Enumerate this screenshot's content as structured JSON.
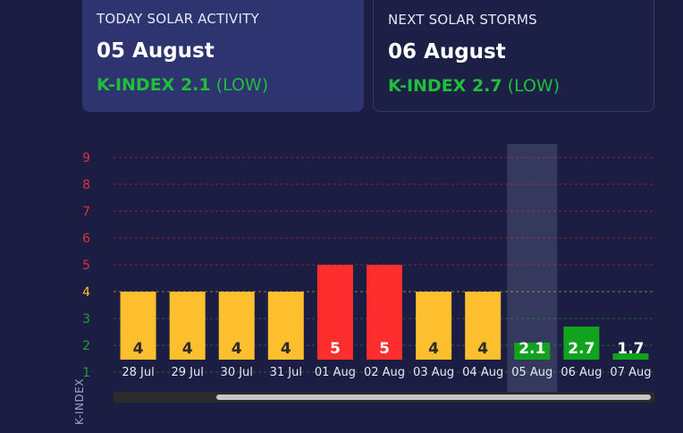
{
  "today": {
    "title": "TODAY SOLAR ACTIVITY",
    "date": "05 August",
    "kindex_label": "K-INDEX 2.1",
    "level": "(LOW)"
  },
  "next": {
    "title": "NEXT SOLAR STORMS",
    "date": "06 August",
    "kindex_label": "K-INDEX 2.7",
    "level": "(LOW)"
  },
  "chart_data": {
    "type": "bar",
    "categories": [
      "28 Jul",
      "29 Jul",
      "30 Jul",
      "31 Jul",
      "01 Aug",
      "02 Aug",
      "03 Aug",
      "04 Aug",
      "05 Aug",
      "06 Aug",
      "07 Aug"
    ],
    "values": [
      4,
      4,
      4,
      4,
      5,
      5,
      4,
      4,
      2.1,
      2.7,
      1.7
    ],
    "value_labels": [
      "4",
      "4",
      "4",
      "4",
      "5",
      "5",
      "4",
      "4",
      "2.1",
      "2.7",
      "1.7"
    ],
    "ylabel": "K-INDEX",
    "yticks": [
      1,
      2,
      3,
      4,
      5,
      6,
      7,
      8,
      9
    ],
    "ylim": [
      0.5,
      9.5
    ],
    "highlighted_category": "05 Aug",
    "colors": {
      "low": "#11a31e",
      "moderate": "#fdbf2d",
      "high": "#ff2e2e",
      "tick_low": "#1fa32c",
      "tick_moderate": "#fdbf2d",
      "tick_high": "#e0303a"
    }
  }
}
